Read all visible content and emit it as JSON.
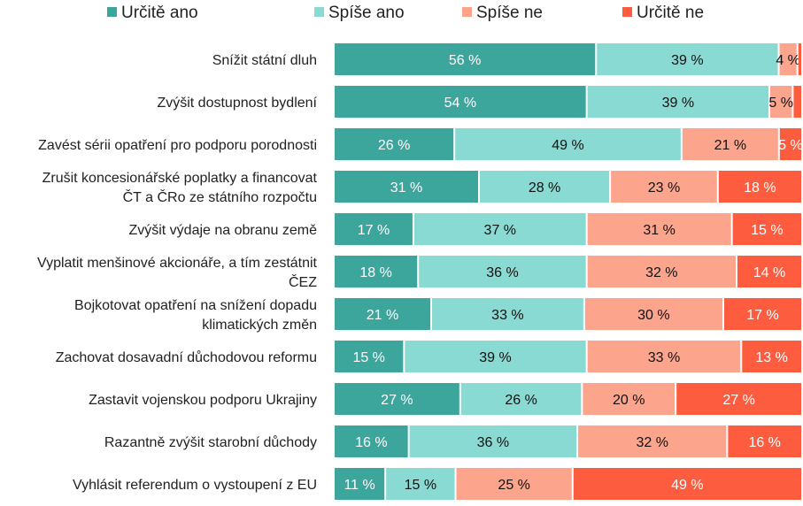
{
  "chart_data": {
    "type": "bar",
    "orientation": "horizontal",
    "stacked": true,
    "title": "",
    "xlabel": "",
    "ylabel": "",
    "xlim": [
      0,
      100
    ],
    "grid": false,
    "legend_position": "top",
    "unit_suffix": " %",
    "categories": [
      [
        "Snížit státní dluh"
      ],
      [
        "Zvýšit dostupnost bydlení"
      ],
      [
        "Zavést sérii opatření pro podporu porodnosti"
      ],
      [
        "Zrušit koncesionářské poplatky a financovat",
        "ČT a ČRo ze státního rozpočtu"
      ],
      [
        "Zvýšit výdaje na obranu země"
      ],
      [
        "Vyplatit menšinové akcionáře, a tím zestátnit",
        "ČEZ"
      ],
      [
        "Bojkotovat opatření na snížení dopadu",
        "klimatických změn"
      ],
      [
        "Zachovat dosavadní důchodovou reformu"
      ],
      [
        "Zastavit vojenskou podporu Ukrajiny"
      ],
      [
        "Razantně zvýšit starobní důchody"
      ],
      [
        "Vyhlásit referendum o vystoupení z EU"
      ]
    ],
    "series": [
      {
        "name": "Určitě ano",
        "color": "#3ca69d",
        "label_color": "#ffffff",
        "values": [
          56,
          54,
          26,
          31,
          17,
          18,
          21,
          15,
          27,
          16,
          11
        ]
      },
      {
        "name": "Spíše ano",
        "color": "#88dad3",
        "label_color": "#111111",
        "values": [
          39,
          39,
          49,
          28,
          37,
          36,
          33,
          39,
          26,
          36,
          15
        ]
      },
      {
        "name": "Spíše ne",
        "color": "#fda48c",
        "label_color": "#111111",
        "values": [
          4,
          5,
          21,
          23,
          31,
          32,
          30,
          33,
          20,
          32,
          25
        ]
      },
      {
        "name": "Určitě ne",
        "color": "#fd5c3e",
        "label_color": "#ffffff",
        "values": [
          1,
          2,
          5,
          18,
          15,
          14,
          17,
          13,
          27,
          16,
          49
        ],
        "label_shown": [
          false,
          false,
          true,
          true,
          true,
          true,
          true,
          true,
          true,
          true,
          true
        ]
      }
    ]
  }
}
